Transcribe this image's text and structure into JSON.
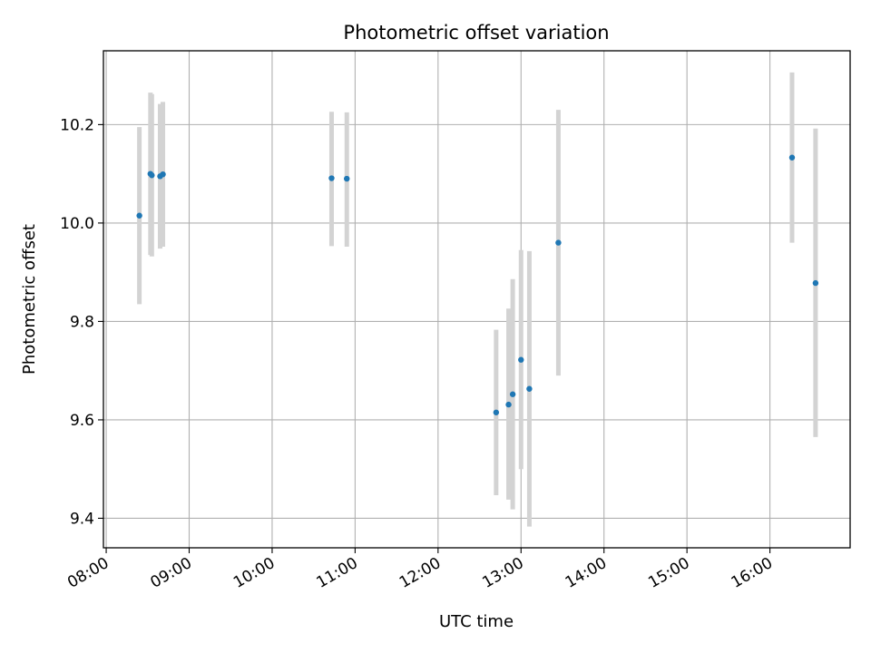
{
  "chart_data": {
    "type": "scatter",
    "title": "Photometric offset variation",
    "xlabel": "UTC time",
    "ylabel": "Photometric offset",
    "x_is_time": true,
    "xlim": [
      "07:58",
      "16:58"
    ],
    "ylim": [
      9.34,
      10.35
    ],
    "x_ticks": [
      "08:00",
      "09:00",
      "10:00",
      "11:00",
      "12:00",
      "13:00",
      "14:00",
      "15:00",
      "16:00"
    ],
    "y_ticks": [
      9.4,
      9.6,
      9.8,
      10.0,
      10.2
    ],
    "y_tick_labels": [
      "9.4",
      "9.6",
      "9.8",
      "10.0",
      "10.2"
    ],
    "grid": true,
    "legend": "none",
    "series": [
      {
        "marker_color": "#1f77b4",
        "errorbar_color": "#d3d3d3",
        "points": [
          {
            "x": "08:24",
            "y": 10.015,
            "lo": 9.835,
            "hi": 10.195
          },
          {
            "x": "08:32",
            "y": 10.1,
            "lo": 9.935,
            "hi": 10.265
          },
          {
            "x": "08:33",
            "y": 10.097,
            "lo": 9.932,
            "hi": 10.262
          },
          {
            "x": "08:39",
            "y": 10.095,
            "lo": 9.948,
            "hi": 10.242
          },
          {
            "x": "08:41",
            "y": 10.099,
            "lo": 9.952,
            "hi": 10.246
          },
          {
            "x": "10:43",
            "y": 10.091,
            "lo": 9.953,
            "hi": 10.226
          },
          {
            "x": "10:54",
            "y": 10.09,
            "lo": 9.952,
            "hi": 10.225
          },
          {
            "x": "12:42",
            "y": 9.615,
            "lo": 9.447,
            "hi": 9.783
          },
          {
            "x": "12:51",
            "y": 9.631,
            "lo": 9.438,
            "hi": 9.826
          },
          {
            "x": "12:54",
            "y": 9.652,
            "lo": 9.418,
            "hi": 9.886
          },
          {
            "x": "13:00",
            "y": 9.722,
            "lo": 9.5,
            "hi": 9.945
          },
          {
            "x": "13:06",
            "y": 9.663,
            "lo": 9.383,
            "hi": 9.943
          },
          {
            "x": "13:27",
            "y": 9.96,
            "lo": 9.69,
            "hi": 10.23
          },
          {
            "x": "16:16",
            "y": 10.133,
            "lo": 9.96,
            "hi": 10.306
          },
          {
            "x": "16:33",
            "y": 9.878,
            "lo": 9.565,
            "hi": 10.192
          }
        ]
      }
    ]
  }
}
